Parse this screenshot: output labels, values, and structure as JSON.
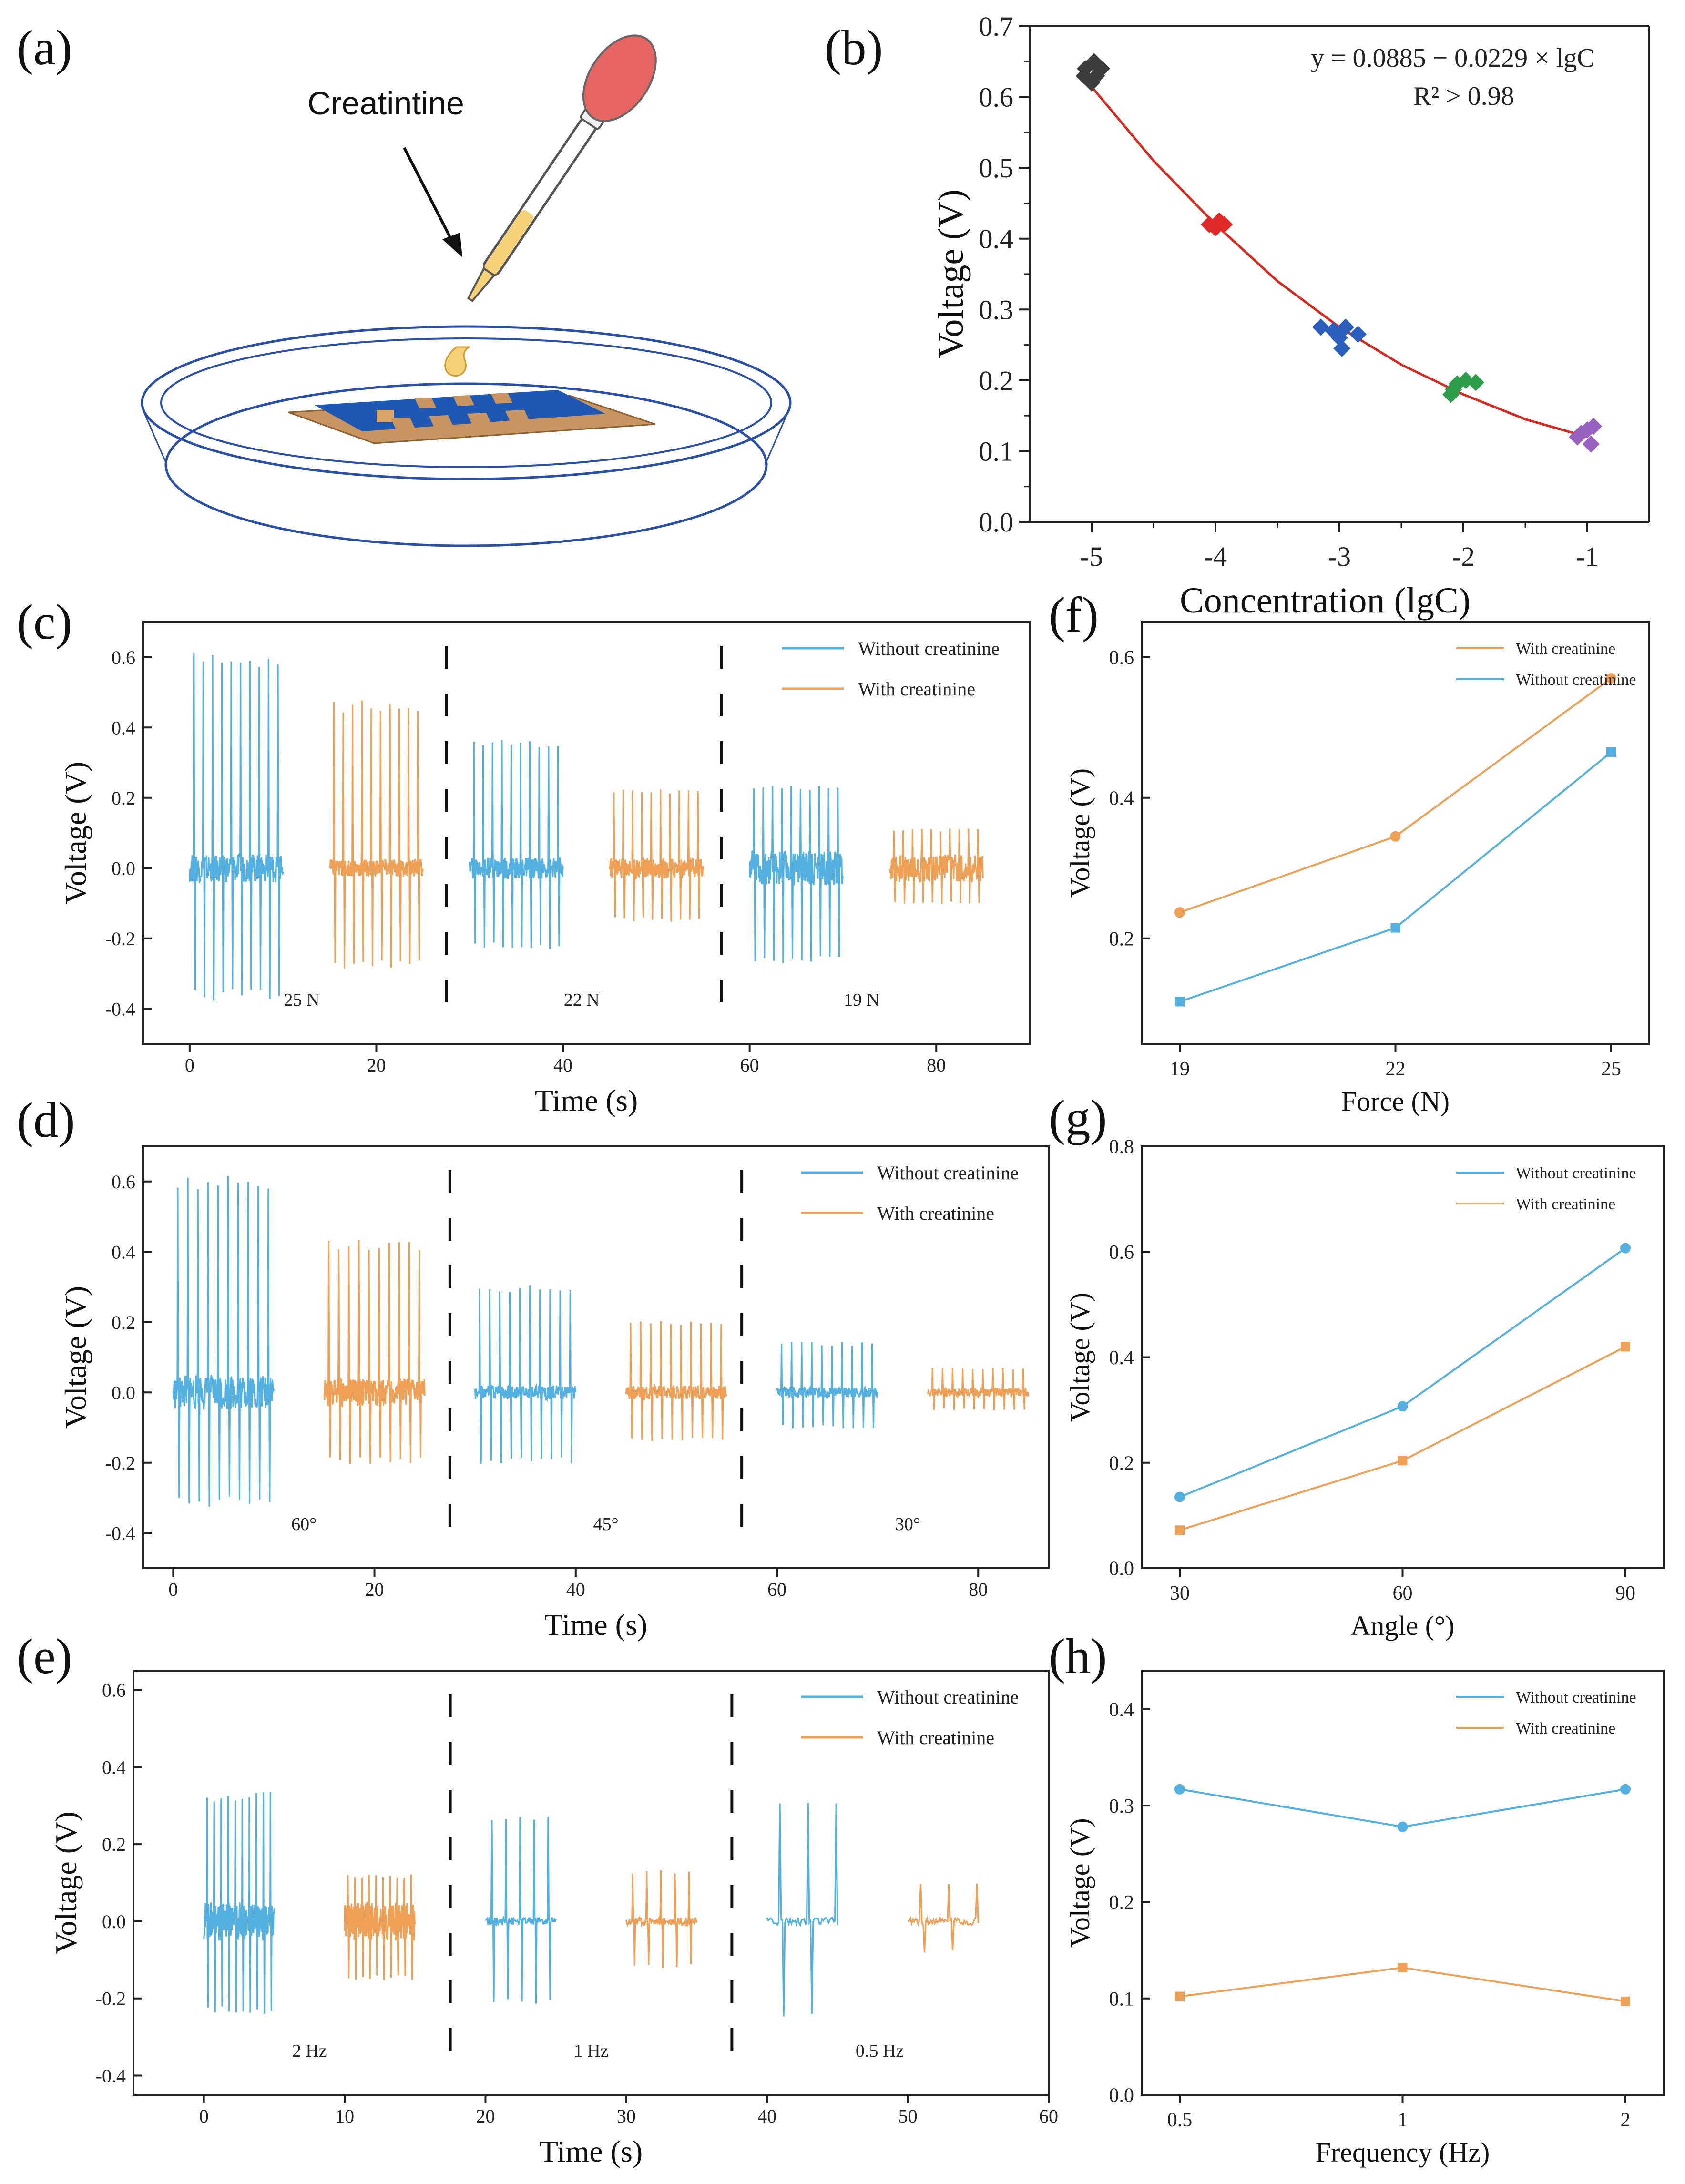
{
  "figure": {
    "panel_labels": [
      "(a)",
      "(b)",
      "(c)",
      "(d)",
      "(e)",
      "(f)",
      "(g)",
      "(h)"
    ]
  },
  "schematic": {
    "label": "Creatintine"
  },
  "colors": {
    "blue": "#54b0e0",
    "orange": "#eea056",
    "fit": "#d62a20",
    "dark": "#3d3d3d",
    "red": "#e02a2a",
    "navy": "#2a5fbd",
    "green": "#2e9e4c",
    "purple": "#9a62c0",
    "pipette_bulb": "#e56464",
    "liquid": "#f5d278",
    "electrode": "#1f57b5",
    "substrate": "#c89562"
  },
  "chart_data": [
    {
      "id": "b",
      "type": "scatter",
      "title": "",
      "xlabel": "Concentration (lgC)",
      "ylabel": "Voltage (V)",
      "xlim": [
        -5.5,
        -0.5
      ],
      "ylim": [
        0,
        0.7
      ],
      "xticks": [
        -5,
        -4,
        -3,
        -2,
        -1
      ],
      "xtick_labels": [
        "-5",
        "-4",
        "-3",
        "-2",
        "-1"
      ],
      "yticks": [
        0,
        0.1,
        0.2,
        0.3,
        0.4,
        0.5,
        0.6,
        0.7
      ],
      "ytick_labels": [
        "0.0",
        "0.1",
        "0.2",
        "0.3",
        "0.4",
        "0.5",
        "0.6",
        "0.7"
      ],
      "annotation": [
        "y = 0.0885 − 0.0229 × lgC",
        "R² > 0.98"
      ],
      "groups": [
        {
          "x": -5,
          "color_key": "dark",
          "points": [
            [
              -5.05,
              0.64
            ],
            [
              -4.98,
              0.65
            ],
            [
              -5.0,
              0.62
            ],
            [
              -4.92,
              0.64
            ],
            [
              -5.06,
              0.63
            ],
            [
              -4.96,
              0.63
            ]
          ]
        },
        {
          "x": -4,
          "color_key": "red",
          "points": [
            [
              -4.05,
              0.42
            ],
            [
              -3.97,
              0.425
            ],
            [
              -4.0,
              0.415
            ],
            [
              -3.93,
              0.42
            ]
          ]
        },
        {
          "x": -3,
          "color_key": "navy",
          "points": [
            [
              -3.15,
              0.275
            ],
            [
              -3.05,
              0.27
            ],
            [
              -2.95,
              0.275
            ],
            [
              -3.0,
              0.26
            ],
            [
              -2.85,
              0.265
            ],
            [
              -2.98,
              0.245
            ]
          ]
        },
        {
          "x": -2,
          "color_key": "green",
          "points": [
            [
              -2.1,
              0.18
            ],
            [
              -2.05,
              0.195
            ],
            [
              -1.98,
              0.2
            ],
            [
              -1.9,
              0.197
            ],
            [
              -2.08,
              0.187
            ]
          ]
        },
        {
          "x": -1,
          "color_key": "purple",
          "points": [
            [
              -1.08,
              0.12
            ],
            [
              -1.0,
              0.13
            ],
            [
              -0.97,
              0.11
            ],
            [
              -1.05,
              0.125
            ],
            [
              -0.95,
              0.135
            ]
          ]
        }
      ],
      "fit_curve": {
        "x": [
          -5.05,
          -4.5,
          -4,
          -3.5,
          -3,
          -2.5,
          -2,
          -1.5,
          -1
        ],
        "y": [
          0.625,
          0.51,
          0.42,
          0.34,
          0.275,
          0.222,
          0.18,
          0.145,
          0.12
        ]
      }
    },
    {
      "id": "c",
      "type": "line",
      "xlabel": "Time (s)",
      "ylabel": "Voltage (V)",
      "xlim": [
        -5,
        90
      ],
      "ylim": [
        -0.5,
        0.7
      ],
      "xticks": [
        0,
        20,
        40,
        60,
        80
      ],
      "xtick_labels": [
        "0",
        "20",
        "40",
        "60",
        "80"
      ],
      "yticks": [
        -0.4,
        -0.2,
        0,
        0.2,
        0.4,
        0.6
      ],
      "ytick_labels": [
        "-0.4",
        "-0.2",
        "0.0",
        "0.2",
        "0.4",
        "0.6"
      ],
      "legend": [
        "Without creatinine",
        "With creatinine"
      ],
      "separators": [
        27.5,
        57
      ],
      "region_labels": [
        {
          "x": 12,
          "text": "25 N"
        },
        {
          "x": 42,
          "text": "22 N"
        },
        {
          "x": 72,
          "text": "19 N"
        }
      ],
      "bursts": [
        {
          "series": 0,
          "start": 0,
          "end": 10,
          "peak": 0.6,
          "trough": -0.37,
          "noise": 0.04
        },
        {
          "series": 1,
          "start": 15,
          "end": 25,
          "peak": 0.47,
          "trough": -0.28,
          "noise": 0.025
        },
        {
          "series": 0,
          "start": 30,
          "end": 40,
          "peak": 0.36,
          "trough": -0.23,
          "noise": 0.03
        },
        {
          "series": 1,
          "start": 45,
          "end": 55,
          "peak": 0.22,
          "trough": -0.15,
          "noise": 0.03
        },
        {
          "series": 0,
          "start": 60,
          "end": 70,
          "peak": 0.23,
          "trough": -0.27,
          "noise": 0.05
        },
        {
          "series": 1,
          "start": 75,
          "end": 85,
          "peak": 0.11,
          "trough": -0.1,
          "noise": 0.04
        }
      ]
    },
    {
      "id": "d",
      "type": "line",
      "xlabel": "Time (s)",
      "ylabel": "Voltage (V)",
      "xlim": [
        -3,
        87
      ],
      "ylim": [
        -0.5,
        0.7
      ],
      "xticks": [
        0,
        20,
        40,
        60,
        80
      ],
      "xtick_labels": [
        "0",
        "20",
        "40",
        "60",
        "80"
      ],
      "yticks": [
        -0.4,
        -0.2,
        0,
        0.2,
        0.4,
        0.6
      ],
      "ytick_labels": [
        "-0.4",
        "-0.2",
        "0.0",
        "0.2",
        "0.4",
        "0.6"
      ],
      "legend": [
        "Without creatinine",
        "With creatinine"
      ],
      "separators": [
        27.5,
        56.5
      ],
      "region_labels": [
        {
          "x": 13,
          "text": "60°"
        },
        {
          "x": 43,
          "text": "45°"
        },
        {
          "x": 73,
          "text": "30°"
        }
      ],
      "bursts": [
        {
          "series": 0,
          "start": 0,
          "end": 10,
          "peak": 0.61,
          "trough": -0.32,
          "noise": 0.05
        },
        {
          "series": 1,
          "start": 15,
          "end": 25,
          "peak": 0.43,
          "trough": -0.2,
          "noise": 0.04
        },
        {
          "series": 0,
          "start": 30,
          "end": 40,
          "peak": 0.3,
          "trough": -0.2,
          "noise": 0.02
        },
        {
          "series": 1,
          "start": 45,
          "end": 55,
          "peak": 0.2,
          "trough": -0.14,
          "noise": 0.02
        },
        {
          "series": 0,
          "start": 60,
          "end": 70,
          "peak": 0.14,
          "trough": -0.1,
          "noise": 0.015
        },
        {
          "series": 1,
          "start": 75,
          "end": 85,
          "peak": 0.07,
          "trough": -0.05,
          "noise": 0.012
        }
      ]
    },
    {
      "id": "e",
      "type": "line",
      "xlabel": "Time (s)",
      "ylabel": "Voltage (V)",
      "xlim": [
        -5,
        60
      ],
      "ylim": [
        -0.45,
        0.65
      ],
      "xticks": [
        0,
        10,
        20,
        30,
        40,
        50,
        60
      ],
      "xtick_labels": [
        "0",
        "10",
        "20",
        "30",
        "40",
        "50",
        "60"
      ],
      "yticks": [
        -0.4,
        -0.2,
        0,
        0.2,
        0.4,
        0.6
      ],
      "ytick_labels": [
        "-0.4",
        "-0.2",
        "0.0",
        "0.2",
        "0.4",
        "0.6"
      ],
      "legend": [
        "Without creatinine",
        "With creatinine"
      ],
      "separators": [
        17.5,
        37.5
      ],
      "region_labels": [
        {
          "x": 7.5,
          "text": "2 Hz"
        },
        {
          "x": 27.5,
          "text": "1 Hz"
        },
        {
          "x": 48,
          "text": "0.5 Hz"
        }
      ],
      "bursts": [
        {
          "series": 0,
          "start": 0,
          "end": 5,
          "peak": 0.33,
          "trough": -0.24,
          "noise": 0.05,
          "cycles": 10
        },
        {
          "series": 1,
          "start": 10,
          "end": 15,
          "peak": 0.12,
          "trough": -0.15,
          "noise": 0.05,
          "cycles": 10
        },
        {
          "series": 0,
          "start": 20,
          "end": 25,
          "peak": 0.27,
          "trough": -0.21,
          "noise": 0.01,
          "cycles": 5
        },
        {
          "series": 1,
          "start": 30,
          "end": 35,
          "peak": 0.13,
          "trough": -0.12,
          "noise": 0.01,
          "cycles": 5
        },
        {
          "series": 0,
          "start": 40,
          "end": 45,
          "peak": 0.31,
          "trough": -0.25,
          "noise": 0.01,
          "cycles": 2.5
        },
        {
          "series": 1,
          "start": 50,
          "end": 55,
          "peak": 0.1,
          "trough": -0.08,
          "noise": 0.01,
          "cycles": 2.5
        }
      ]
    },
    {
      "id": "f",
      "type": "line",
      "xlabel": "Force (N)",
      "ylabel": "Voltage (V)",
      "categories": [
        "19",
        "22",
        "25"
      ],
      "ylim": [
        0.05,
        0.65
      ],
      "yticks": [
        0.2,
        0.4,
        0.6
      ],
      "ytick_labels": [
        "0.2",
        "0.4",
        "0.6"
      ],
      "legend_order": [
        1,
        0
      ],
      "series": [
        {
          "name": "Without creatinine",
          "color_key": "blue",
          "marker": "square",
          "values": [
            0.11,
            0.215,
            0.465
          ]
        },
        {
          "name": "With creatinine",
          "color_key": "orange",
          "marker": "circle",
          "values": [
            0.237,
            0.345,
            0.57
          ]
        }
      ]
    },
    {
      "id": "g",
      "type": "line",
      "xlabel": "Angle (°)",
      "ylabel": "Voltage (V)",
      "categories": [
        "30",
        "60",
        "90"
      ],
      "ylim": [
        0,
        0.8
      ],
      "yticks": [
        0,
        0.2,
        0.4,
        0.6,
        0.8
      ],
      "ytick_labels": [
        "0.0",
        "0.2",
        "0.4",
        "0.6",
        "0.8"
      ],
      "legend_order": [
        0,
        1
      ],
      "series": [
        {
          "name": "Without creatinine",
          "color_key": "blue",
          "marker": "circle",
          "values": [
            0.135,
            0.307,
            0.607
          ]
        },
        {
          "name": "With creatinine",
          "color_key": "orange",
          "marker": "square",
          "values": [
            0.072,
            0.204,
            0.42
          ]
        }
      ]
    },
    {
      "id": "h",
      "type": "line",
      "xlabel": "Frequency (Hz)",
      "ylabel": "Voltage (V)",
      "categories": [
        "0.5",
        "1",
        "2"
      ],
      "ylim": [
        0,
        0.44
      ],
      "yticks": [
        0,
        0.1,
        0.2,
        0.3,
        0.4
      ],
      "ytick_labels": [
        "0.0",
        "0.1",
        "0.2",
        "0.3",
        "0.4"
      ],
      "legend_order": [
        0,
        1
      ],
      "series": [
        {
          "name": "Without creatinine",
          "color_key": "blue",
          "marker": "circle",
          "values": [
            0.317,
            0.278,
            0.317
          ]
        },
        {
          "name": "With creatinine",
          "color_key": "orange",
          "marker": "square",
          "values": [
            0.102,
            0.132,
            0.097
          ]
        }
      ]
    }
  ]
}
